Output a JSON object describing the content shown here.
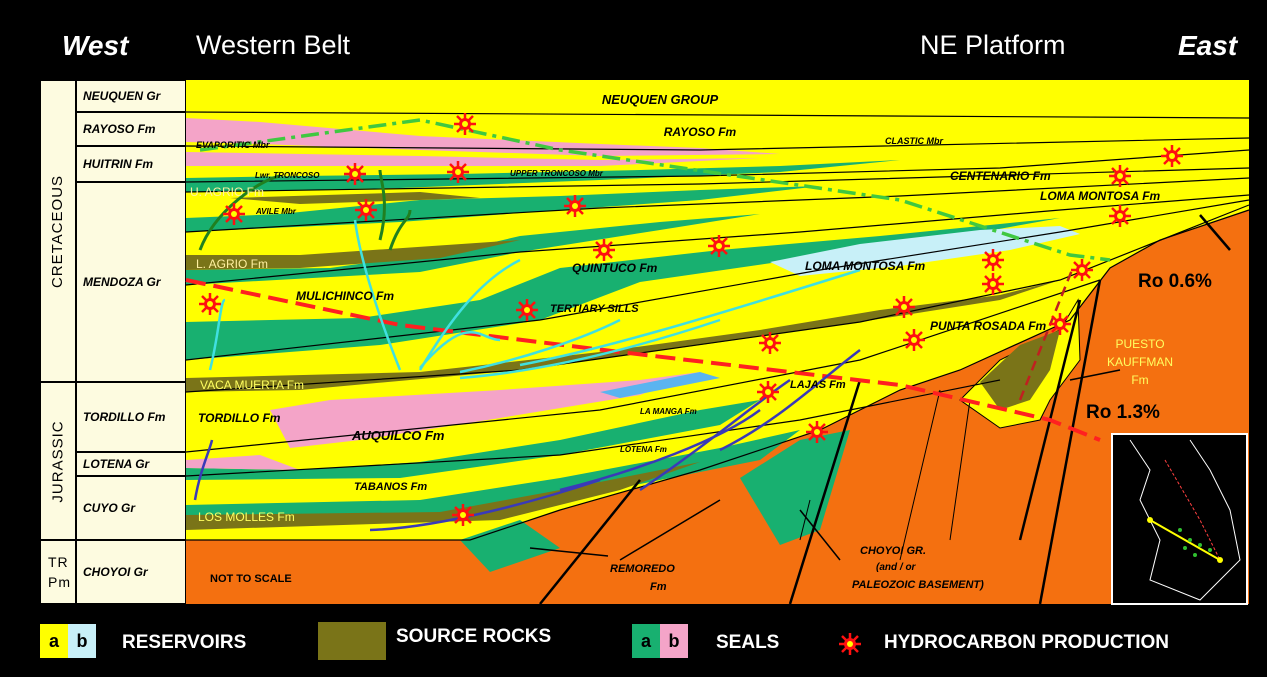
{
  "header": {
    "west": "West",
    "western_belt": "Western Belt",
    "ne_platform": "NE Platform",
    "east": "East"
  },
  "periods": [
    "CRETACEOUS",
    "JURASSIC",
    "TR Pm"
  ],
  "units": [
    "NEUQUEN Gr",
    "RAYOSO Fm",
    "HUITRIN Fm",
    "MENDOZA Gr",
    "TORDILLO Fm",
    "LOTENA Gr",
    "CUYO Gr",
    "CHOYOI Gr"
  ],
  "labels": {
    "neuquen_group": "NEUQUEN GROUP",
    "rayoso": "RAYOSO Fm",
    "evaporitic": "EVAPORITIC Mbr",
    "clastic": "CLASTIC Mbr",
    "lwr_troncoso": "Lwr. TRONCOSO",
    "upper_troncoso": "UPPER TRONCOSO Mbr",
    "centenario": "CENTENARIO Fm",
    "loma_montosa_1": "LOMA MONTOSA Fm",
    "loma_montosa_2": "LOMA MONTOSA Fm",
    "u_agrio": "U. AGRIO Fm",
    "avile": "AVILE Mbr",
    "l_agrio": "L. AGRIO Fm",
    "quintuco": "QUINTUCO Fm",
    "mulichinco": "MULICHINCO Fm",
    "tertiary_sills": "TERTIARY SILLS",
    "punta_rosada": "PUNTA ROSADA Fm",
    "vaca_muerta": "VACA MUERTA Fm",
    "lajas": "LAJAS Fm",
    "tordillo": "TORDILLO Fm",
    "auquilco": "AUQUILCO Fm",
    "la_manga": "LA MANGA Fm",
    "lotena": "LOTENA Fm",
    "tabanos": "TABANOS Fm",
    "los_molles": "LOS MOLLES Fm",
    "remoredo": "REMOREDO",
    "remoredo_fm": "Fm",
    "choyoi": "CHOYOI GR.",
    "and_or": "(and / or",
    "paleozoic": "PALEOZOIC BASEMENT)",
    "not_to_scale": "NOT TO SCALE",
    "ro06": "Ro 0.6%",
    "ro13": "Ro 1.3%",
    "puesto": "PUESTO",
    "kauffman": "KAUFFMAN",
    "kauffman_fm": "Fm"
  },
  "legend": {
    "a": "a",
    "b": "b",
    "reservoirs": "RESERVOIRS",
    "source_rocks": "SOURCE ROCKS",
    "seals": "SEALS",
    "hydrocarbon": "HYDROCARBON PRODUCTION"
  },
  "colors": {
    "reservoir_a": "#ffff00",
    "reservoir_b": "#c8f0f8",
    "source": "#7a7418",
    "seal_a": "#18b070",
    "seal_b": "#f4a4c8",
    "basement": "#f47010",
    "hc": "#ff1010"
  }
}
